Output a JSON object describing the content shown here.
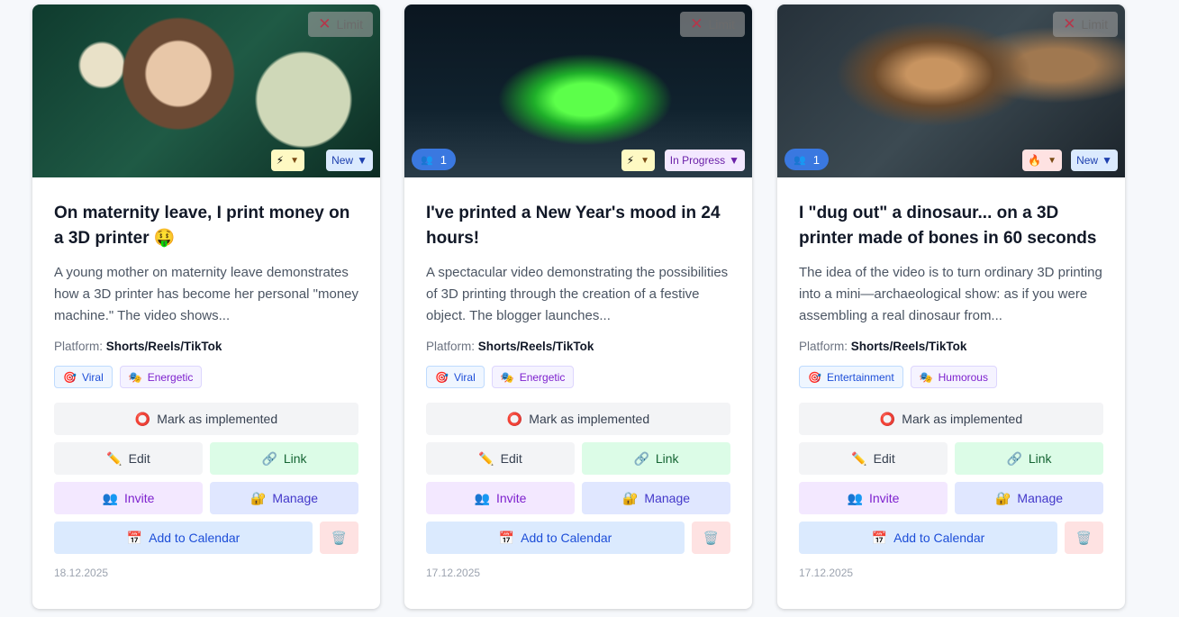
{
  "labels": {
    "limit": "Limit",
    "platform_prefix": "Platform:",
    "mark": "Mark as implemented",
    "edit": "Edit",
    "link": "Link",
    "invite": "Invite",
    "manage": "Manage",
    "calendar": "Add to Calendar"
  },
  "icons": {
    "limit": "✕",
    "mark": "⭕",
    "edit": "✏️",
    "link": "🔗",
    "invite": "👥",
    "manage": "🔐",
    "calendar": "📅",
    "delete": "🗑️",
    "tag1": "🎯",
    "tag2": "🎭",
    "dropdown": "▼"
  },
  "colors": {
    "team_badge": "#3a78e0",
    "status_new": "#dbeafe",
    "status_progress": "#f3e8ff"
  },
  "cards": [
    {
      "title": "On maternity leave, I print money on a 3D printer 🤑",
      "description": "A young mother on maternity leave demonstrates how a 3D printer has become her personal \"money machine.\" The video shows...",
      "platform": "Shorts/Reels/TikTok",
      "tags": [
        "Viral",
        "Energetic"
      ],
      "priority_icon": "⚡",
      "status": "New",
      "team_count": null,
      "date": "18.12.2025"
    },
    {
      "title": "I've printed a New Year's mood in 24 hours!",
      "description": "A spectacular video demonstrating the possibilities of 3D printing through the creation of a festive object. The blogger launches...",
      "platform": "Shorts/Reels/TikTok",
      "tags": [
        "Viral",
        "Energetic"
      ],
      "priority_icon": "⚡",
      "status": "In Progress",
      "team_count": "1",
      "date": "17.12.2025"
    },
    {
      "title": "I \"dug out\" a dinosaur... on a 3D printer made of bones in 60 seconds",
      "description": "The idea of the video is to turn ordinary 3D printing into a mini—archaeological show: as if you were assembling a real dinosaur from...",
      "platform": "Shorts/Reels/TikTok",
      "tags": [
        "Entertainment",
        "Humorous"
      ],
      "priority_icon": "🔥",
      "status": "New",
      "team_count": "1",
      "date": "17.12.2025"
    }
  ]
}
